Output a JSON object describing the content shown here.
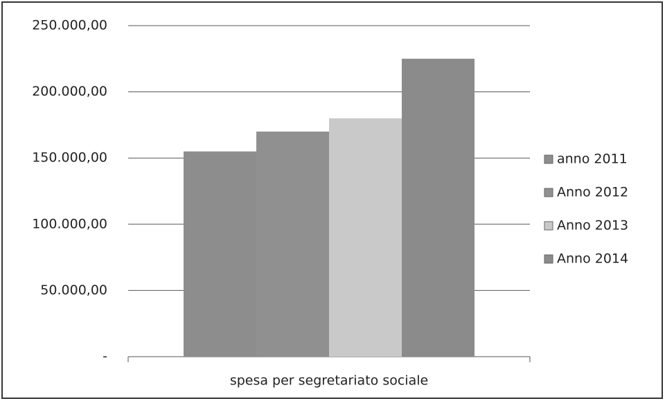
{
  "chart_data": {
    "type": "bar",
    "categories": [
      "spesa per segretariato sociale"
    ],
    "series": [
      {
        "name": "anno 2011",
        "color": "#8d8d8d",
        "values": [
          155000
        ]
      },
      {
        "name": "Anno 2012",
        "color": "#909090",
        "values": [
          170000
        ]
      },
      {
        "name": "Anno 2013",
        "color": "#c9c9c9",
        "values": [
          180000
        ]
      },
      {
        "name": "Anno 2014",
        "color": "#8b8b8b",
        "values": [
          225000
        ]
      }
    ],
    "ylim": [
      0,
      250000
    ],
    "yticks": [
      {
        "value": 0,
        "label": "-"
      },
      {
        "value": 50000,
        "label": "50.000,00"
      },
      {
        "value": 100000,
        "label": "100.000,00"
      },
      {
        "value": 150000,
        "label": "150.000,00"
      },
      {
        "value": 200000,
        "label": "200.000,00"
      },
      {
        "value": 250000,
        "label": "250.000,00"
      }
    ],
    "grid": true,
    "legend": "right"
  }
}
